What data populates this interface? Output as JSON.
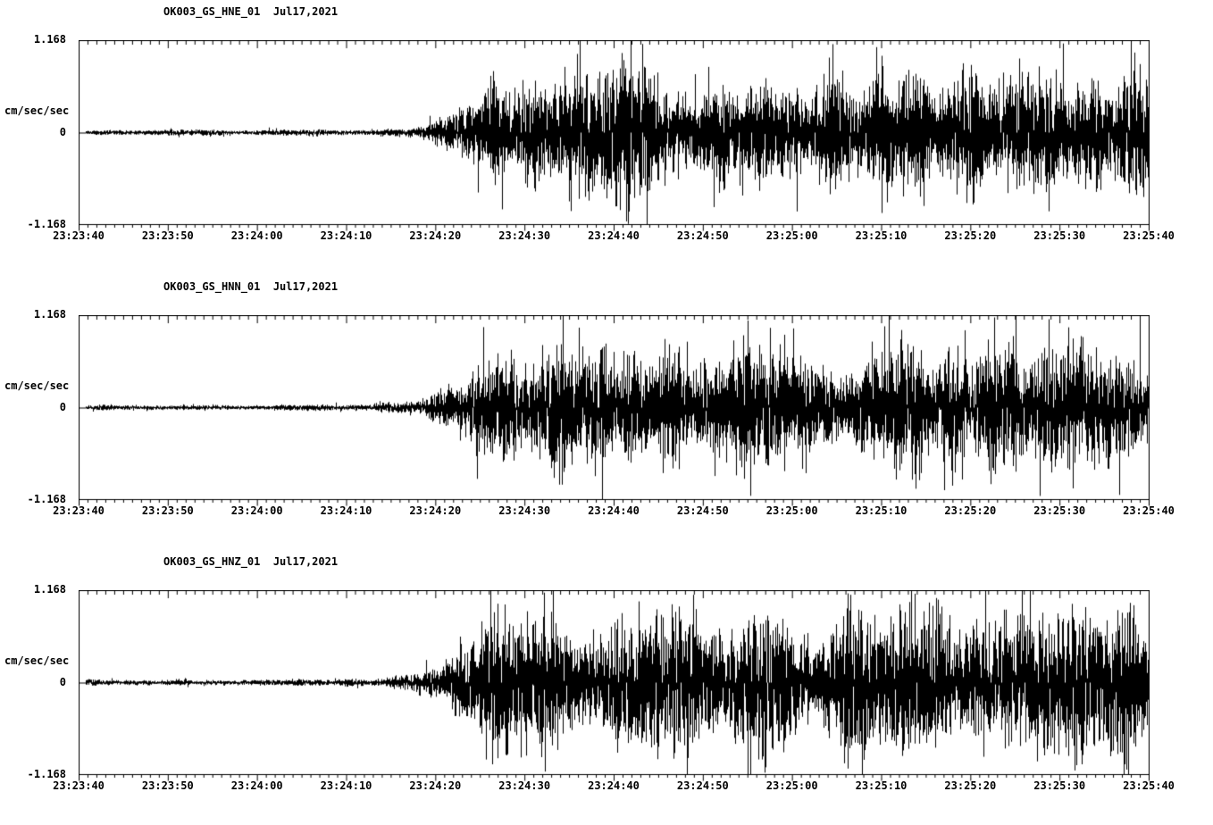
{
  "page": {
    "background": "#ffffff",
    "text_color": "#000000"
  },
  "chart_data": [
    {
      "type": "line",
      "kind": "seismogram-waveform",
      "title": "OK003_GS_HNE_01  Jul17,2021",
      "ylabel": "cm/sec/sec",
      "ylim": [
        -1.168,
        1.168
      ],
      "ytick_labels": [
        "1.168",
        "0",
        "-1.168"
      ],
      "duration_sec": 120,
      "xtick_interval_sec": 10,
      "minor_tick_interval_sec": 1,
      "xtick_labels": [
        "23:23:40",
        "23:23:50",
        "23:24:00",
        "23:24:10",
        "23:24:20",
        "23:24:30",
        "23:24:40",
        "23:24:50",
        "23:25:00",
        "23:25:10",
        "23:25:20",
        "23:25:30",
        "23:25:40"
      ],
      "line_color": "#000000",
      "seed": 101,
      "envelope": {
        "t_sec": [
          0,
          20,
          30,
          34,
          37,
          40,
          42,
          44,
          46,
          49,
          52,
          56,
          60,
          65,
          70,
          75,
          80,
          85,
          90,
          95,
          100,
          105,
          110,
          115,
          120
        ],
        "amp": [
          0.025,
          0.028,
          0.032,
          0.045,
          0.07,
          0.13,
          0.25,
          0.45,
          0.58,
          0.52,
          0.62,
          0.55,
          0.68,
          0.58,
          0.62,
          0.55,
          0.6,
          0.56,
          0.62,
          0.55,
          0.6,
          0.63,
          0.55,
          0.58,
          0.6
        ]
      }
    },
    {
      "type": "line",
      "kind": "seismogram-waveform",
      "title": "OK003_GS_HNN_01  Jul17,2021",
      "ylabel": "cm/sec/sec",
      "ylim": [
        -1.168,
        1.168
      ],
      "ytick_labels": [
        "1.168",
        "0",
        "-1.168"
      ],
      "duration_sec": 120,
      "xtick_interval_sec": 10,
      "minor_tick_interval_sec": 1,
      "xtick_labels": [
        "23:23:40",
        "23:23:50",
        "23:24:00",
        "23:24:10",
        "23:24:20",
        "23:24:30",
        "23:24:40",
        "23:24:50",
        "23:25:00",
        "23:25:10",
        "23:25:20",
        "23:25:30",
        "23:25:40"
      ],
      "line_color": "#000000",
      "seed": 202,
      "envelope": {
        "t_sec": [
          0,
          20,
          30,
          34,
          37,
          40,
          42,
          44,
          46,
          49,
          52,
          56,
          60,
          65,
          70,
          75,
          80,
          85,
          90,
          95,
          100,
          105,
          110,
          115,
          120
        ],
        "amp": [
          0.025,
          0.028,
          0.032,
          0.045,
          0.08,
          0.15,
          0.28,
          0.48,
          0.55,
          0.5,
          0.58,
          0.52,
          0.62,
          0.56,
          0.58,
          0.52,
          0.56,
          0.5,
          0.55,
          0.52,
          0.62,
          0.58,
          0.5,
          0.54,
          0.55
        ]
      }
    },
    {
      "type": "line",
      "kind": "seismogram-waveform",
      "title": "OK003_GS_HNZ_01  Jul17,2021",
      "ylabel": "cm/sec/sec",
      "ylim": [
        -1.168,
        1.168
      ],
      "ytick_labels": [
        "1.168",
        "0",
        "-1.168"
      ],
      "duration_sec": 120,
      "xtick_interval_sec": 10,
      "minor_tick_interval_sec": 1,
      "xtick_labels": [
        "23:23:40",
        "23:23:50",
        "23:24:00",
        "23:24:10",
        "23:24:20",
        "23:24:30",
        "23:24:40",
        "23:24:50",
        "23:25:00",
        "23:25:10",
        "23:25:20",
        "23:25:30",
        "23:25:40"
      ],
      "line_color": "#000000",
      "seed": 303,
      "envelope": {
        "t_sec": [
          0,
          20,
          30,
          34,
          37,
          40,
          42,
          44,
          46,
          49,
          52,
          56,
          60,
          65,
          70,
          75,
          80,
          85,
          90,
          95,
          100,
          105,
          110,
          115,
          120
        ],
        "amp": [
          0.025,
          0.028,
          0.035,
          0.05,
          0.09,
          0.18,
          0.32,
          0.52,
          0.65,
          0.85,
          0.7,
          0.62,
          0.68,
          0.62,
          0.66,
          0.6,
          0.66,
          0.62,
          0.58,
          0.62,
          0.68,
          0.62,
          0.66,
          0.62,
          0.64
        ]
      }
    }
  ]
}
